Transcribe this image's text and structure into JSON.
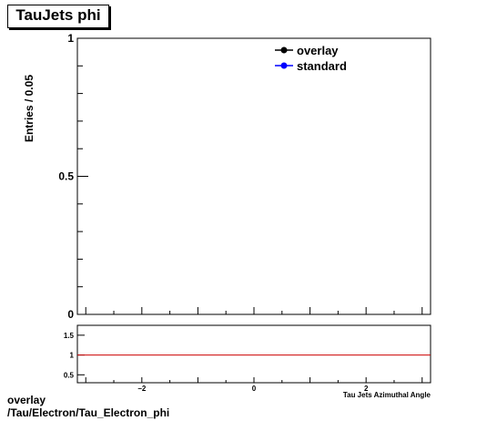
{
  "title": "TauJets phi",
  "footer": {
    "line1": "overlay",
    "line2": "/Tau/Electron/Tau_Electron_phi"
  },
  "chart_data": [
    {
      "type": "line",
      "role": "main",
      "ylabel": "Entries / 0.05",
      "xlabel": "Tau Jets Azimuthal Angle",
      "xlim": [
        -3.15,
        3.15
      ],
      "ylim": [
        0,
        1
      ],
      "y_ticks": [
        "0",
        "0.5",
        "1"
      ],
      "grid": false,
      "legend_position": "top-right",
      "series": [
        {
          "name": "overlay",
          "color": "#000000",
          "x": [],
          "y": []
        },
        {
          "name": "standard",
          "color": "#0000ff",
          "x": [],
          "y": []
        }
      ]
    },
    {
      "type": "line",
      "role": "ratio",
      "xlim": [
        -3.15,
        3.15
      ],
      "ylim": [
        0.3,
        1.75
      ],
      "x_ticks": [
        "-2",
        "0",
        "2"
      ],
      "y_ticks": [
        "0.5",
        "1",
        "1.5"
      ],
      "reference_line": {
        "y": 1,
        "color": "#cc0000"
      }
    }
  ]
}
